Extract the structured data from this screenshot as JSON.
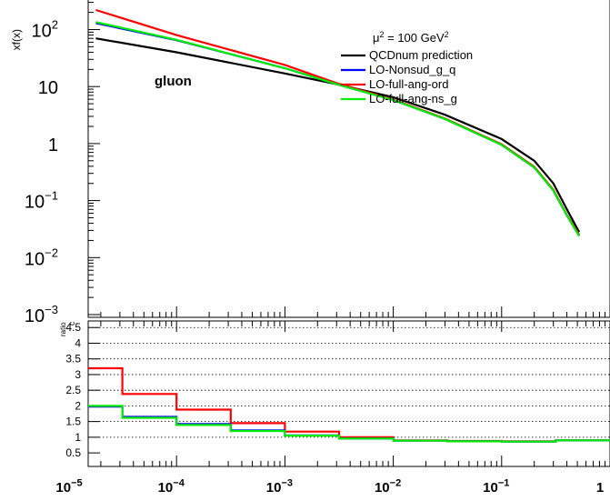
{
  "chart_data": [
    {
      "type": "line",
      "panel": "main",
      "xscale": "log",
      "yscale": "log",
      "xlim": [
        1e-05,
        1
      ],
      "ylim": [
        0.001,
        400
      ],
      "ylabel": "xf(x)",
      "yticks": [
        {
          "value": 0.001,
          "base": "10",
          "exp": "−3"
        },
        {
          "value": 0.01,
          "base": "10",
          "exp": "−2"
        },
        {
          "value": 0.1,
          "base": "10",
          "exp": "−1"
        },
        {
          "value": 1,
          "base": "1",
          "exp": ""
        },
        {
          "value": 10,
          "base": "10",
          "exp": ""
        },
        {
          "value": 100,
          "base": "10",
          "exp": "2"
        }
      ],
      "annotation": "gluon",
      "legend": {
        "header_prefix": "μ",
        "header_sup": "2",
        "header_mid": " = 100 GeV",
        "header_sup2": "2",
        "placement": "top-right"
      },
      "series": [
        {
          "name": "QCDnum prediction",
          "color": "#000000",
          "x": [
            1.8e-05,
            0.0001,
            0.001,
            0.003,
            0.01,
            0.03,
            0.1,
            0.2,
            0.3,
            0.4,
            0.52
          ],
          "y": [
            70,
            40,
            17,
            11,
            6.5,
            3.2,
            1.2,
            0.5,
            0.2,
            0.07,
            0.028
          ]
        },
        {
          "name": "LO-Nonsud_g_q",
          "color": "#0000ff",
          "x": [
            1.8e-05,
            0.0001,
            0.001,
            0.003,
            0.01,
            0.03,
            0.1,
            0.2,
            0.3,
            0.4,
            0.52
          ],
          "y": [
            130,
            65,
            21,
            11,
            5.8,
            2.7,
            0.95,
            0.38,
            0.15,
            0.055,
            0.024
          ]
        },
        {
          "name": "LO-full-ang-ord",
          "color": "#ff0000",
          "x": [
            1.8e-05,
            0.0001,
            0.001,
            0.003,
            0.01,
            0.03,
            0.1,
            0.2,
            0.3,
            0.4,
            0.52
          ],
          "y": [
            220,
            80,
            24,
            11.5,
            5.9,
            2.75,
            0.97,
            0.39,
            0.155,
            0.056,
            0.025
          ]
        },
        {
          "name": "LO-full-ang-ns_g",
          "color": "#00ee00",
          "x": [
            1.8e-05,
            0.0001,
            0.001,
            0.003,
            0.01,
            0.03,
            0.1,
            0.2,
            0.3,
            0.4,
            0.52
          ],
          "y": [
            135,
            66,
            21,
            11,
            5.8,
            2.7,
            0.95,
            0.38,
            0.15,
            0.055,
            0.024
          ]
        }
      ]
    },
    {
      "type": "line",
      "panel": "ratio",
      "step": true,
      "xscale": "log",
      "xlim": [
        1e-05,
        1
      ],
      "ylim": [
        0.3,
        5
      ],
      "ylabel_main": "ratio",
      "ylabel_sub": "c",
      "yticks": [
        0.5,
        1,
        1.5,
        2,
        2.5,
        3,
        3.5,
        4,
        4.5
      ],
      "gridlines_y": [
        1,
        1.5,
        2,
        2.5,
        3,
        3.5,
        4,
        4.5
      ],
      "xticks": [
        {
          "value": 1e-05,
          "base": "10",
          "exp": "−5"
        },
        {
          "value": 0.0001,
          "base": "10",
          "exp": "−4"
        },
        {
          "value": 0.001,
          "base": "10",
          "exp": "−3"
        },
        {
          "value": 0.01,
          "base": "10",
          "exp": "−2"
        },
        {
          "value": 0.1,
          "base": "10",
          "exp": "−1"
        },
        {
          "value": 1,
          "base": "1",
          "exp": ""
        }
      ],
      "bin_edges": [
        1e-05,
        3.16e-05,
        0.0001,
        0.000316,
        0.001,
        0.00316,
        0.01,
        0.0316,
        0.1,
        0.316,
        1
      ],
      "series": [
        {
          "color": "#ff0000",
          "values": [
            3.2,
            2.38,
            1.88,
            1.45,
            1.18,
            1.0,
            0.9,
            0.88,
            0.87,
            0.9
          ]
        },
        {
          "color": "#0000ff",
          "values": [
            1.98,
            1.65,
            1.42,
            1.22,
            1.06,
            0.96,
            0.89,
            0.87,
            0.86,
            0.9
          ]
        },
        {
          "color": "#00ee00",
          "values": [
            2.0,
            1.62,
            1.39,
            1.2,
            1.05,
            0.96,
            0.89,
            0.87,
            0.86,
            0.9
          ]
        }
      ]
    }
  ]
}
